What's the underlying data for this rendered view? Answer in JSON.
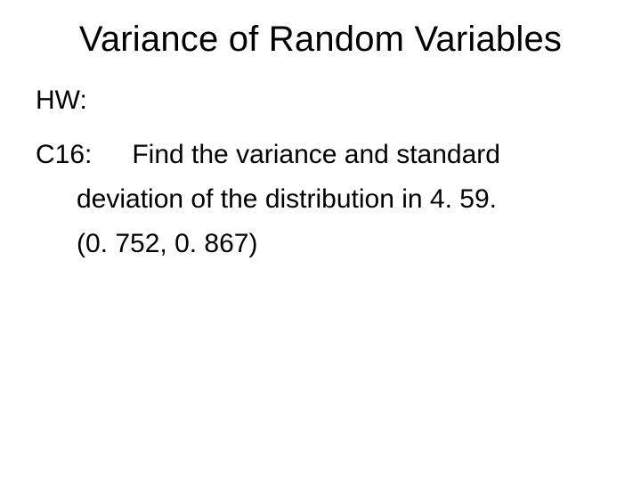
{
  "slide": {
    "title": "Variance of Random Variables",
    "hw_label": "HW:",
    "problem": {
      "id_label": "C16:",
      "line1_rest": "Find the variance and standard",
      "line2": "deviation of the distribution in 4. 59.",
      "answer": "(0. 752, 0. 867)"
    }
  },
  "style": {
    "background_color": "#ffffff",
    "text_color": "#000000",
    "title_fontsize": 40,
    "body_fontsize": 30,
    "font_family": "Arial"
  }
}
